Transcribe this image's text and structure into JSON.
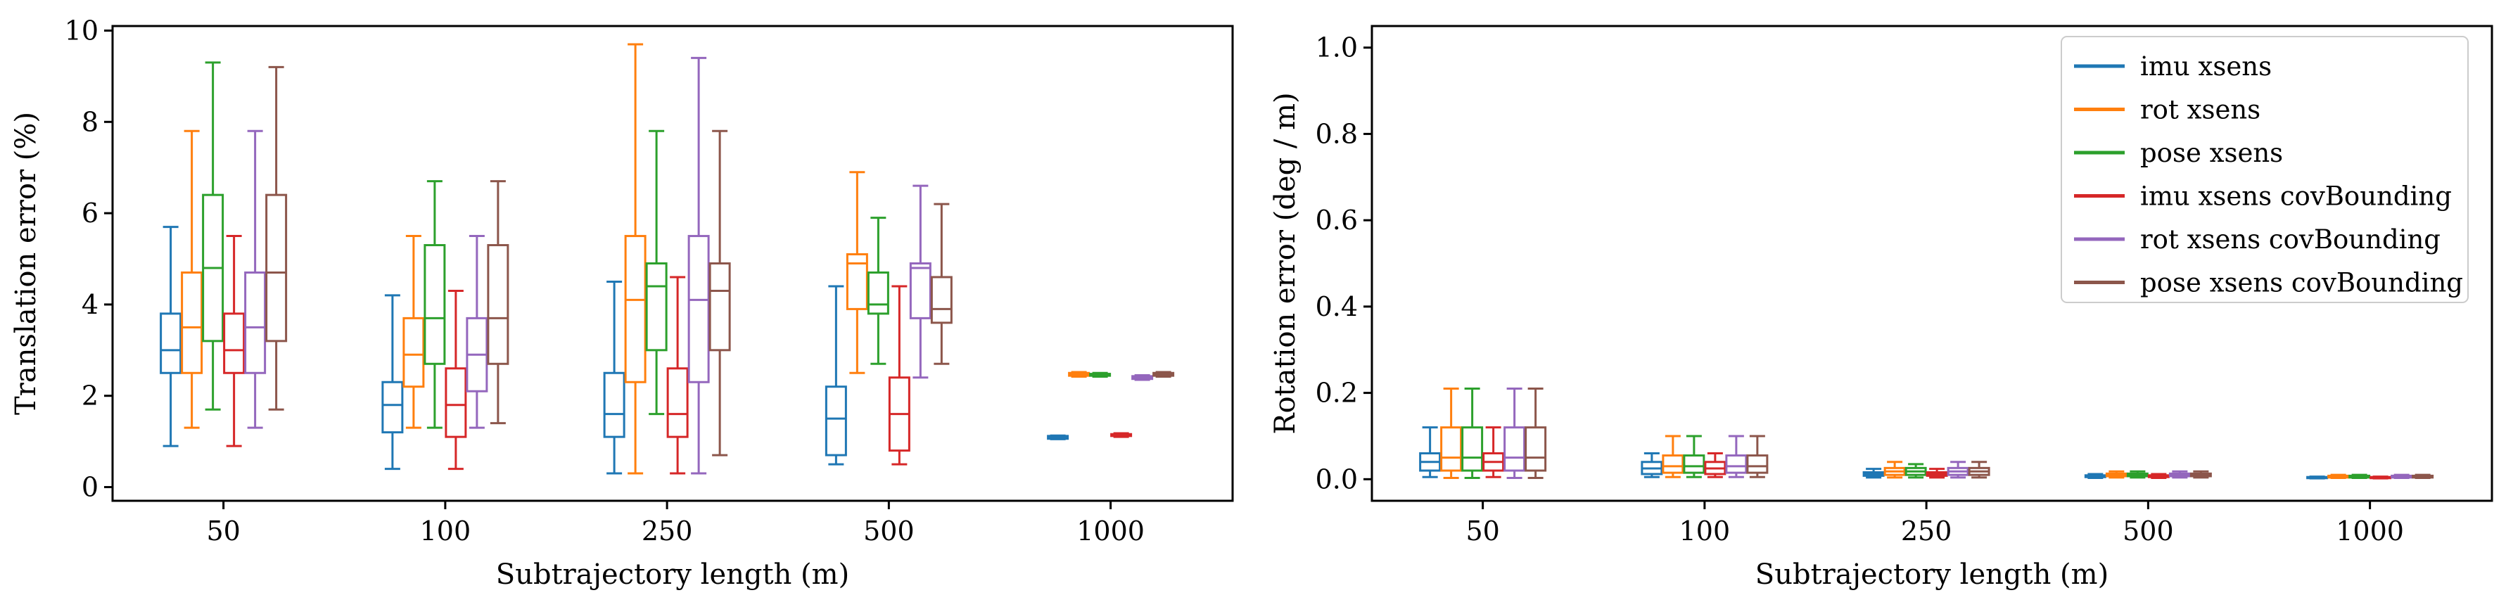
{
  "figure": {
    "series": [
      {
        "name": "imu xsens",
        "color": "#1f77b4"
      },
      {
        "name": "rot xsens",
        "color": "#ff7f0e"
      },
      {
        "name": "pose xsens",
        "color": "#2ca02c"
      },
      {
        "name": "imu xsens covBounding",
        "color": "#d62728"
      },
      {
        "name": "rot xsens covBounding",
        "color": "#9467bd"
      },
      {
        "name": "pose xsens covBounding",
        "color": "#8c564b"
      }
    ]
  },
  "chart_data": [
    {
      "type": "box",
      "xlabel": "Subtrajectory length (m)",
      "ylabel": "Translation error (%)",
      "ylim": [
        -0.3,
        10.1
      ],
      "yticks": [
        "0",
        "2",
        "4",
        "6",
        "8",
        "10"
      ],
      "categories": [
        "50",
        "100",
        "250",
        "500",
        "1000"
      ],
      "grid": false,
      "legend": "none",
      "series": [
        {
          "name": "imu xsens",
          "boxes": [
            {
              "whislo": 0.9,
              "q1": 2.5,
              "med": 3.0,
              "q3": 3.8,
              "whishi": 5.7
            },
            {
              "whislo": 0.4,
              "q1": 1.2,
              "med": 1.8,
              "q3": 2.3,
              "whishi": 4.2
            },
            {
              "whislo": 0.3,
              "q1": 1.1,
              "med": 1.6,
              "q3": 2.5,
              "whishi": 4.5
            },
            {
              "whislo": 0.5,
              "q1": 0.7,
              "med": 1.5,
              "q3": 2.2,
              "whishi": 4.4
            },
            {
              "whislo": 1.05,
              "q1": 1.06,
              "med": 1.09,
              "q3": 1.12,
              "whishi": 1.13
            }
          ]
        },
        {
          "name": "rot xsens",
          "boxes": [
            {
              "whislo": 1.3,
              "q1": 2.5,
              "med": 3.5,
              "q3": 4.7,
              "whishi": 7.8
            },
            {
              "whislo": 1.3,
              "q1": 2.2,
              "med": 2.9,
              "q3": 3.7,
              "whishi": 5.5
            },
            {
              "whislo": 0.3,
              "q1": 2.3,
              "med": 4.1,
              "q3": 5.5,
              "whishi": 9.7
            },
            {
              "whislo": 2.5,
              "q1": 3.9,
              "med": 4.9,
              "q3": 5.1,
              "whishi": 6.9
            },
            {
              "whislo": 2.42,
              "q1": 2.44,
              "med": 2.47,
              "q3": 2.5,
              "whishi": 2.52
            }
          ]
        },
        {
          "name": "pose xsens",
          "boxes": [
            {
              "whislo": 1.7,
              "q1": 3.2,
              "med": 4.8,
              "q3": 6.4,
              "whishi": 9.3
            },
            {
              "whislo": 1.3,
              "q1": 2.7,
              "med": 3.7,
              "q3": 5.3,
              "whishi": 6.7
            },
            {
              "whislo": 1.6,
              "q1": 3.0,
              "med": 4.4,
              "q3": 4.9,
              "whishi": 7.8
            },
            {
              "whislo": 2.7,
              "q1": 3.8,
              "med": 4.0,
              "q3": 4.7,
              "whishi": 5.9
            },
            {
              "whislo": 2.42,
              "q1": 2.44,
              "med": 2.46,
              "q3": 2.48,
              "whishi": 2.5
            }
          ]
        },
        {
          "name": "imu xsens covBounding",
          "boxes": [
            {
              "whislo": 0.9,
              "q1": 2.5,
              "med": 3.0,
              "q3": 3.8,
              "whishi": 5.5
            },
            {
              "whislo": 0.4,
              "q1": 1.1,
              "med": 1.8,
              "q3": 2.6,
              "whishi": 4.3
            },
            {
              "whislo": 0.3,
              "q1": 1.1,
              "med": 1.6,
              "q3": 2.6,
              "whishi": 4.6
            },
            {
              "whislo": 0.5,
              "q1": 0.8,
              "med": 1.6,
              "q3": 2.4,
              "whishi": 4.4
            },
            {
              "whislo": 1.1,
              "q1": 1.12,
              "med": 1.14,
              "q3": 1.16,
              "whishi": 1.18
            }
          ]
        },
        {
          "name": "rot xsens covBounding",
          "boxes": [
            {
              "whislo": 1.3,
              "q1": 2.5,
              "med": 3.5,
              "q3": 4.7,
              "whishi": 7.8
            },
            {
              "whislo": 1.3,
              "q1": 2.1,
              "med": 2.9,
              "q3": 3.7,
              "whishi": 5.5
            },
            {
              "whislo": 0.3,
              "q1": 2.3,
              "med": 4.1,
              "q3": 5.5,
              "whishi": 9.4
            },
            {
              "whislo": 2.4,
              "q1": 3.7,
              "med": 4.8,
              "q3": 4.9,
              "whishi": 6.6
            },
            {
              "whislo": 2.35,
              "q1": 2.37,
              "med": 2.4,
              "q3": 2.43,
              "whishi": 2.45
            }
          ]
        },
        {
          "name": "pose xsens covBounding",
          "boxes": [
            {
              "whislo": 1.7,
              "q1": 3.2,
              "med": 4.7,
              "q3": 6.4,
              "whishi": 9.2
            },
            {
              "whislo": 1.4,
              "q1": 2.7,
              "med": 3.7,
              "q3": 5.3,
              "whishi": 6.7
            },
            {
              "whislo": 0.7,
              "q1": 3.0,
              "med": 4.3,
              "q3": 4.9,
              "whishi": 7.8
            },
            {
              "whislo": 2.7,
              "q1": 3.6,
              "med": 3.9,
              "q3": 4.6,
              "whishi": 6.2
            },
            {
              "whislo": 2.42,
              "q1": 2.44,
              "med": 2.47,
              "q3": 2.5,
              "whishi": 2.52
            }
          ]
        }
      ]
    },
    {
      "type": "box",
      "xlabel": "Subtrajectory length (m)",
      "ylabel": "Rotation error (deg / m)",
      "ylim": [
        -0.05,
        1.05
      ],
      "yticks": [
        "0.0",
        "0.2",
        "0.4",
        "0.6",
        "0.8",
        "1.0"
      ],
      "categories": [
        "50",
        "100",
        "250",
        "500",
        "1000"
      ],
      "grid": false,
      "legend": "top-right",
      "series": [
        {
          "name": "imu xsens",
          "boxes": [
            {
              "whislo": 0.005,
              "q1": 0.02,
              "med": 0.04,
              "q3": 0.06,
              "whishi": 0.12
            },
            {
              "whislo": 0.005,
              "q1": 0.012,
              "med": 0.025,
              "q3": 0.04,
              "whishi": 0.06
            },
            {
              "whislo": 0.004,
              "q1": 0.008,
              "med": 0.012,
              "q3": 0.016,
              "whishi": 0.024
            },
            {
              "whislo": 0.003,
              "q1": 0.005,
              "med": 0.007,
              "q3": 0.009,
              "whishi": 0.012
            },
            {
              "whislo": 0.002,
              "q1": 0.003,
              "med": 0.004,
              "q3": 0.005,
              "whishi": 0.006
            }
          ]
        },
        {
          "name": "rot xsens",
          "boxes": [
            {
              "whislo": 0.003,
              "q1": 0.02,
              "med": 0.05,
              "q3": 0.12,
              "whishi": 0.21
            },
            {
              "whislo": 0.005,
              "q1": 0.015,
              "med": 0.03,
              "q3": 0.055,
              "whishi": 0.1
            },
            {
              "whislo": 0.004,
              "q1": 0.01,
              "med": 0.018,
              "q3": 0.026,
              "whishi": 0.04
            },
            {
              "whislo": 0.004,
              "q1": 0.007,
              "med": 0.01,
              "q3": 0.013,
              "whishi": 0.018
            },
            {
              "whislo": 0.003,
              "q1": 0.004,
              "med": 0.006,
              "q3": 0.008,
              "whishi": 0.01
            }
          ]
        },
        {
          "name": "pose xsens",
          "boxes": [
            {
              "whislo": 0.003,
              "q1": 0.02,
              "med": 0.05,
              "q3": 0.12,
              "whishi": 0.21
            },
            {
              "whislo": 0.005,
              "q1": 0.015,
              "med": 0.03,
              "q3": 0.055,
              "whishi": 0.1
            },
            {
              "whislo": 0.004,
              "q1": 0.01,
              "med": 0.018,
              "q3": 0.026,
              "whishi": 0.035
            },
            {
              "whislo": 0.004,
              "q1": 0.007,
              "med": 0.01,
              "q3": 0.013,
              "whishi": 0.018
            },
            {
              "whislo": 0.003,
              "q1": 0.004,
              "med": 0.006,
              "q3": 0.008,
              "whishi": 0.01
            }
          ]
        },
        {
          "name": "imu xsens covBounding",
          "boxes": [
            {
              "whislo": 0.005,
              "q1": 0.02,
              "med": 0.04,
              "q3": 0.06,
              "whishi": 0.12
            },
            {
              "whislo": 0.005,
              "q1": 0.012,
              "med": 0.025,
              "q3": 0.04,
              "whishi": 0.06
            },
            {
              "whislo": 0.004,
              "q1": 0.008,
              "med": 0.012,
              "q3": 0.016,
              "whishi": 0.024
            },
            {
              "whislo": 0.003,
              "q1": 0.005,
              "med": 0.007,
              "q3": 0.009,
              "whishi": 0.012
            },
            {
              "whislo": 0.002,
              "q1": 0.003,
              "med": 0.004,
              "q3": 0.005,
              "whishi": 0.006
            }
          ]
        },
        {
          "name": "rot xsens covBounding",
          "boxes": [
            {
              "whislo": 0.003,
              "q1": 0.02,
              "med": 0.05,
              "q3": 0.12,
              "whishi": 0.21
            },
            {
              "whislo": 0.005,
              "q1": 0.015,
              "med": 0.03,
              "q3": 0.055,
              "whishi": 0.1
            },
            {
              "whislo": 0.004,
              "q1": 0.01,
              "med": 0.018,
              "q3": 0.026,
              "whishi": 0.04
            },
            {
              "whislo": 0.004,
              "q1": 0.007,
              "med": 0.01,
              "q3": 0.013,
              "whishi": 0.018
            },
            {
              "whislo": 0.003,
              "q1": 0.004,
              "med": 0.006,
              "q3": 0.008,
              "whishi": 0.01
            }
          ]
        },
        {
          "name": "pose xsens covBounding",
          "boxes": [
            {
              "whislo": 0.003,
              "q1": 0.02,
              "med": 0.05,
              "q3": 0.12,
              "whishi": 0.21
            },
            {
              "whislo": 0.005,
              "q1": 0.015,
              "med": 0.03,
              "q3": 0.055,
              "whishi": 0.1
            },
            {
              "whislo": 0.004,
              "q1": 0.01,
              "med": 0.018,
              "q3": 0.026,
              "whishi": 0.04
            },
            {
              "whislo": 0.004,
              "q1": 0.007,
              "med": 0.01,
              "q3": 0.013,
              "whishi": 0.018
            },
            {
              "whislo": 0.003,
              "q1": 0.004,
              "med": 0.006,
              "q3": 0.008,
              "whishi": 0.01
            }
          ]
        }
      ]
    }
  ]
}
